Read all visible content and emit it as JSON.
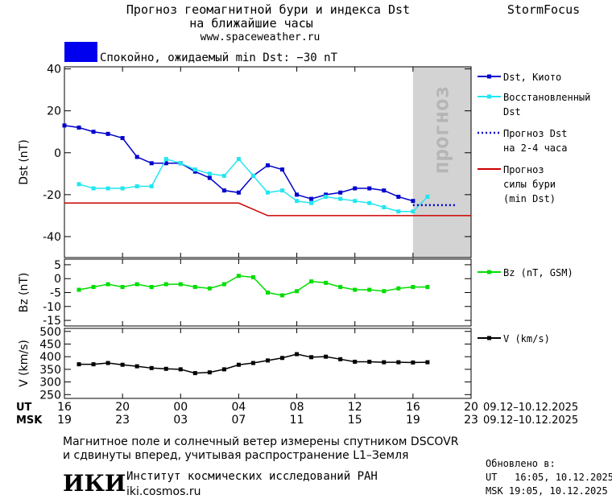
{
  "header": {
    "title": "Прогноз геомагнитной бури и индекса Dst",
    "subtitle": "на ближайшие часы",
    "url": "www.spaceweather.ru",
    "brand": "StormFocus"
  },
  "chart_data": [
    {
      "type": "line",
      "ylabel": "Dst (nT)",
      "xlim": [
        0,
        28
      ],
      "ylim": [
        -50,
        41
      ],
      "yticks": [
        40,
        20,
        0,
        -20,
        -40
      ],
      "status": {
        "label": "Спокойно, ожидаемый min Dst: −30 nT",
        "color": "#0000ee"
      },
      "forecast_region": {
        "x": [
          24,
          28
        ],
        "label": "прогноз",
        "color": "#d3d3d3"
      },
      "series": [
        {
          "name": "Dst, Киото",
          "color": "#0000cc",
          "marker": true,
          "dashed": false,
          "x": [
            0,
            1,
            2,
            3,
            4,
            5,
            6,
            7,
            8,
            9,
            10,
            11,
            12,
            13,
            14,
            15,
            16,
            17,
            18,
            19,
            20,
            21,
            22,
            23,
            24
          ],
          "values": [
            13,
            12,
            10,
            9,
            7,
            -2,
            -5,
            -5,
            -5,
            -9,
            -12,
            -18,
            -19,
            -11,
            -6,
            -8,
            -20,
            -22,
            -20,
            -19,
            -17,
            -17,
            -18,
            -21,
            -23
          ]
        },
        {
          "name": "Восстановленный Dst",
          "color": "#22e6f0",
          "marker": true,
          "dashed": false,
          "x": [
            1,
            2,
            3,
            4,
            5,
            6,
            7,
            8,
            9,
            10,
            11,
            12,
            13,
            14,
            15,
            16,
            17,
            18,
            19,
            20,
            21,
            22,
            23,
            24,
            25
          ],
          "values": [
            -15,
            -17,
            -17,
            -17,
            -16,
            -16,
            -3,
            -5,
            -8,
            -10,
            -11,
            -3,
            -11,
            -19,
            -18,
            -23,
            -24,
            -21,
            -22,
            -23,
            -24,
            -26,
            -28,
            -28,
            -21
          ]
        },
        {
          "name": "Прогноз Dst на 2-4 часа",
          "color": "#0000cc",
          "marker": false,
          "dashed": true,
          "x": [
            24,
            27
          ],
          "values": [
            -25,
            -25
          ]
        },
        {
          "name": "Прогноз силы бури (min Dst)",
          "color": "#cc0000",
          "marker": false,
          "dashed": false,
          "x": [
            0,
            12,
            14,
            28
          ],
          "values": [
            -24,
            -24,
            -30,
            -30
          ]
        }
      ]
    },
    {
      "type": "line",
      "ylabel": "Bz (nT)",
      "xlim": [
        0,
        28
      ],
      "ylim": [
        -17,
        7
      ],
      "yticks": [
        5,
        0,
        -5,
        -10,
        -15
      ],
      "series": [
        {
          "name": "Bz (nT, GSM)",
          "color": "#00dd00",
          "marker": true,
          "dashed": false,
          "x": [
            1,
            2,
            3,
            4,
            5,
            6,
            7,
            8,
            9,
            10,
            11,
            12,
            13,
            14,
            15,
            16,
            17,
            18,
            19,
            20,
            21,
            22,
            23,
            24,
            25
          ],
          "values": [
            -4,
            -3,
            -2,
            -3,
            -2,
            -3,
            -2,
            -2,
            -3,
            -3.5,
            -2,
            1,
            0.5,
            -5,
            -6,
            -4.5,
            -1,
            -1.5,
            -3,
            -4,
            -4,
            -4.5,
            -3.5,
            -3,
            -3
          ]
        }
      ]
    },
    {
      "type": "line",
      "ylabel": "V (km/s)",
      "xlim": [
        0,
        28
      ],
      "ylim": [
        235,
        512
      ],
      "yticks": [
        500,
        450,
        400,
        350,
        300,
        250
      ],
      "xticks": [
        {
          "value": 0,
          "label": "16"
        },
        {
          "value": 4,
          "label": "20"
        },
        {
          "value": 8,
          "label": "00"
        },
        {
          "value": 12,
          "label": "04"
        },
        {
          "value": 16,
          "label": "08"
        },
        {
          "value": 20,
          "label": "12"
        },
        {
          "value": 24,
          "label": "16"
        },
        {
          "value": 28,
          "label": "20"
        }
      ],
      "xticks_msk": [
        {
          "value": 0,
          "label": "19"
        },
        {
          "value": 4,
          "label": "23"
        },
        {
          "value": 8,
          "label": "03"
        },
        {
          "value": 12,
          "label": "07"
        },
        {
          "value": 16,
          "label": "11"
        },
        {
          "value": 20,
          "label": "15"
        },
        {
          "value": 24,
          "label": "19"
        },
        {
          "value": 28,
          "label": "23"
        }
      ],
      "ut_label": "UT",
      "msk_label": "MSK",
      "ut_range": "09.12–10.12.2025",
      "msk_range": "09.12–10.12.2025",
      "series": [
        {
          "name": "V (km/s)",
          "color": "#000000",
          "marker": true,
          "dashed": false,
          "x": [
            1,
            2,
            3,
            4,
            5,
            6,
            7,
            8,
            9,
            10,
            11,
            12,
            13,
            14,
            15,
            16,
            17,
            18,
            19,
            20,
            21,
            22,
            23,
            24,
            25
          ],
          "values": [
            370,
            370,
            375,
            368,
            362,
            355,
            352,
            350,
            335,
            338,
            350,
            368,
            375,
            385,
            395,
            410,
            398,
            400,
            390,
            380,
            380,
            378,
            378,
            377,
            378
          ]
        }
      ]
    }
  ],
  "footer": {
    "note_1": "Магнитное поле и солнечный ветер измерены спутником DSCOVR",
    "note_2": "и сдвинуты вперед, учитывая распространение L1–Земля",
    "logo": "ИКИ",
    "institute": "Институт космических исследований РАН",
    "site": "iki.cosmos.ru",
    "updated": "Обновлено в:",
    "updated_ut": "UT   16:05, 10.12.2025",
    "updated_msk": "MSK 19:05, 10.12.2025"
  }
}
